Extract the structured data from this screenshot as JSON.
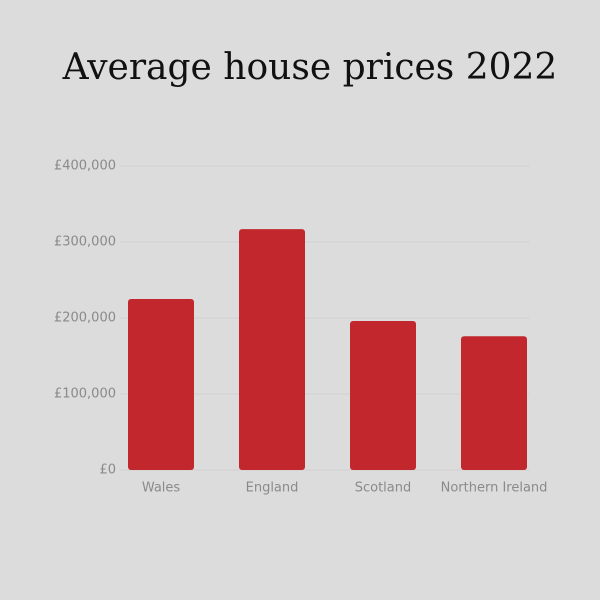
{
  "chart_data": {
    "type": "bar",
    "title": "Average house prices 2022",
    "categories": [
      "Wales",
      "England",
      "Scotland",
      "Northern Ireland"
    ],
    "values": [
      225000,
      317000,
      196000,
      176000
    ],
    "color": "#c1272d",
    "ylim": [
      0,
      400000
    ],
    "yticks": [
      {
        "value": 0,
        "label": "£0"
      },
      {
        "value": 100000,
        "label": "£100,000"
      },
      {
        "value": 200000,
        "label": "£200,000"
      },
      {
        "value": 300000,
        "label": "£300,000"
      },
      {
        "value": 400000,
        "label": "£400,000"
      }
    ],
    "grid": true
  }
}
